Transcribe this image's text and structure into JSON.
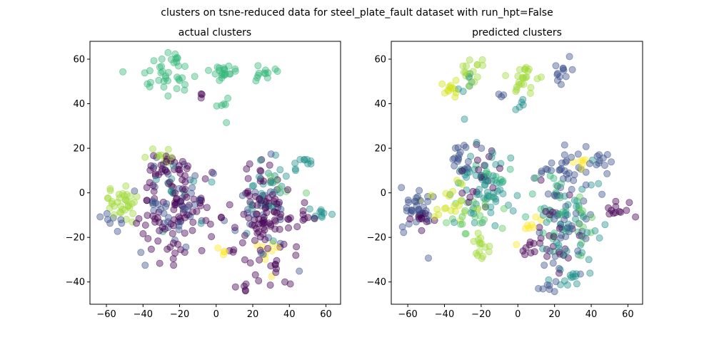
{
  "figure": {
    "suptitle": "clusters on tsne-reduced data for steel_plate_fault dataset with run_hpt=False"
  },
  "chart_data": [
    {
      "type": "scatter",
      "title": "actual clusters",
      "xlabel": "",
      "ylabel": "",
      "xlim": [
        -69,
        68
      ],
      "ylim": [
        -50,
        68
      ],
      "xticks": [
        -60,
        -40,
        -20,
        0,
        20,
        40,
        60
      ],
      "yticks": [
        -40,
        -20,
        0,
        20,
        40,
        60
      ],
      "grid": false,
      "colormap": "viridis",
      "palette": [
        "#440154",
        "#3b528b",
        "#21918c",
        "#5ec962",
        "#fde725",
        "#35b779",
        "#a0da39"
      ],
      "clusters": [
        {
          "cx": -28,
          "cy": 52,
          "sx": 7,
          "sy": 4,
          "n": 30,
          "c": 5
        },
        {
          "cx": -22,
          "cy": 60,
          "sx": 1.5,
          "sy": 2,
          "n": 8,
          "c": 5
        },
        {
          "cx": 4,
          "cy": 53,
          "sx": 3,
          "sy": 2.5,
          "n": 20,
          "c": 5
        },
        {
          "cx": 3,
          "cy": 42,
          "sx": 2,
          "sy": 3,
          "n": 6,
          "c": 5
        },
        {
          "cx": 25,
          "cy": 53,
          "sx": 3,
          "sy": 2,
          "n": 12,
          "c": 5
        },
        {
          "cx": -8,
          "cy": 44,
          "sx": 1,
          "sy": 1,
          "n": 3,
          "c": 0
        },
        {
          "cx": -52,
          "cy": -6,
          "sx": 5,
          "sy": 5,
          "n": 34,
          "c": 6
        },
        {
          "cx": -55,
          "cy": -14,
          "sx": 4,
          "sy": 3,
          "n": 8,
          "c": 1
        },
        {
          "cx": -30,
          "cy": 17,
          "sx": 5,
          "sy": 2,
          "n": 10,
          "c": 6
        },
        {
          "cx": -24,
          "cy": -5,
          "sx": 9,
          "sy": 12,
          "n": 110,
          "c": 0
        },
        {
          "cx": -26,
          "cy": -2,
          "sx": 9,
          "sy": 11,
          "n": 45,
          "c": 1
        },
        {
          "cx": -22,
          "cy": 0,
          "sx": 8,
          "sy": 10,
          "n": 12,
          "c": 2
        },
        {
          "cx": -8,
          "cy": -5,
          "sx": 1,
          "sy": 1.5,
          "n": 5,
          "c": 0
        },
        {
          "cx": 25,
          "cy": -12,
          "sx": 9,
          "sy": 14,
          "n": 110,
          "c": 0
        },
        {
          "cx": 26,
          "cy": 5,
          "sx": 8,
          "sy": 8,
          "n": 25,
          "c": 2
        },
        {
          "cx": 22,
          "cy": -10,
          "sx": 8,
          "sy": 12,
          "n": 22,
          "c": 1
        },
        {
          "cx": 47,
          "cy": 14,
          "sx": 4,
          "sy": 2,
          "n": 10,
          "c": 2
        },
        {
          "cx": 57,
          "cy": -8,
          "sx": 3,
          "sy": 1.5,
          "n": 10,
          "c": 2
        },
        {
          "cx": 50,
          "cy": -10,
          "sx": 3,
          "sy": 2,
          "n": 6,
          "c": 0
        },
        {
          "cx": 15,
          "cy": -43,
          "sx": 1.5,
          "sy": 1,
          "n": 5,
          "c": 0
        },
        {
          "cx": 25,
          "cy": -28,
          "sx": 4,
          "sy": 4,
          "n": 8,
          "c": 4
        },
        {
          "cx": 3,
          "cy": -26,
          "sx": 2,
          "sy": 1,
          "n": 4,
          "c": 4
        },
        {
          "cx": 35,
          "cy": 3,
          "sx": 3,
          "sy": 3,
          "n": 6,
          "c": 3
        }
      ]
    },
    {
      "type": "scatter",
      "title": "predicted clusters",
      "xlabel": "",
      "ylabel": "",
      "xlim": [
        -69,
        68
      ],
      "ylim": [
        -50,
        68
      ],
      "xticks": [
        -60,
        -40,
        -20,
        0,
        20,
        40,
        60
      ],
      "yticks": [
        -40,
        -20,
        0,
        20,
        40,
        60
      ],
      "grid": false,
      "colormap": "viridis",
      "palette": [
        "#440154",
        "#3b528b",
        "#21918c",
        "#5ec962",
        "#fde725",
        "#35b779",
        "#a0da39",
        "#d2e21b"
      ],
      "clusters": [
        {
          "cx": -36,
          "cy": 47,
          "sx": 3,
          "sy": 2,
          "n": 12,
          "c": 7
        },
        {
          "cx": -24,
          "cy": 56,
          "sx": 4,
          "sy": 4,
          "n": 16,
          "c": 6
        },
        {
          "cx": -26,
          "cy": 50,
          "sx": 3,
          "sy": 3,
          "n": 6,
          "c": 2
        },
        {
          "cx": 3,
          "cy": 52,
          "sx": 4,
          "sy": 3,
          "n": 24,
          "c": 6
        },
        {
          "cx": 2,
          "cy": 40,
          "sx": 1.5,
          "sy": 2,
          "n": 5,
          "c": 2
        },
        {
          "cx": 24,
          "cy": 53,
          "sx": 3,
          "sy": 2.5,
          "n": 12,
          "c": 1
        },
        {
          "cx": -8,
          "cy": 44,
          "sx": 1,
          "sy": 1,
          "n": 3,
          "c": 1
        },
        {
          "cx": -55,
          "cy": -8,
          "sx": 5,
          "sy": 6,
          "n": 35,
          "c": 1
        },
        {
          "cx": -53,
          "cy": -12,
          "sx": 4,
          "sy": 3,
          "n": 10,
          "c": 0
        },
        {
          "cx": -32,
          "cy": 15,
          "sx": 4,
          "sy": 3,
          "n": 18,
          "c": 1
        },
        {
          "cx": -35,
          "cy": -4,
          "sx": 6,
          "sy": 5,
          "n": 20,
          "c": 7
        },
        {
          "cx": -20,
          "cy": 0,
          "sx": 8,
          "sy": 10,
          "n": 60,
          "c": 2
        },
        {
          "cx": -25,
          "cy": -10,
          "sx": 7,
          "sy": 7,
          "n": 25,
          "c": 3
        },
        {
          "cx": -20,
          "cy": -24,
          "sx": 4,
          "sy": 3,
          "n": 15,
          "c": 6
        },
        {
          "cx": -22,
          "cy": 5,
          "sx": 7,
          "sy": 8,
          "n": 20,
          "c": 0
        },
        {
          "cx": -12,
          "cy": 8,
          "sx": 4,
          "sy": 4,
          "n": 10,
          "c": 5
        },
        {
          "cx": 25,
          "cy": -12,
          "sx": 9,
          "sy": 13,
          "n": 50,
          "c": 1
        },
        {
          "cx": 30,
          "cy": -15,
          "sx": 8,
          "sy": 12,
          "n": 40,
          "c": 2
        },
        {
          "cx": 20,
          "cy": -20,
          "sx": 6,
          "sy": 10,
          "n": 20,
          "c": 0
        },
        {
          "cx": 20,
          "cy": -8,
          "sx": 7,
          "sy": 8,
          "n": 25,
          "c": 5
        },
        {
          "cx": 26,
          "cy": 12,
          "sx": 6,
          "sy": 4,
          "n": 22,
          "c": 1
        },
        {
          "cx": 47,
          "cy": 14,
          "sx": 4,
          "sy": 2,
          "n": 10,
          "c": 1
        },
        {
          "cx": 55,
          "cy": -8,
          "sx": 4,
          "sy": 2,
          "n": 12,
          "c": 0
        },
        {
          "cx": 8,
          "cy": -25,
          "sx": 3,
          "sy": 2,
          "n": 10,
          "c": 0
        },
        {
          "cx": 8,
          "cy": -12,
          "sx": 3,
          "sy": 4,
          "n": 8,
          "c": 4
        },
        {
          "cx": 15,
          "cy": -42,
          "sx": 2,
          "sy": 1.5,
          "n": 6,
          "c": 1
        },
        {
          "cx": 28,
          "cy": -38,
          "sx": 4,
          "sy": 2,
          "n": 10,
          "c": 2
        },
        {
          "cx": 36,
          "cy": -12,
          "sx": 3,
          "sy": 5,
          "n": 12,
          "c": 3
        },
        {
          "cx": 35,
          "cy": 15,
          "sx": 3,
          "sy": 2,
          "n": 6,
          "c": 4
        }
      ]
    }
  ]
}
